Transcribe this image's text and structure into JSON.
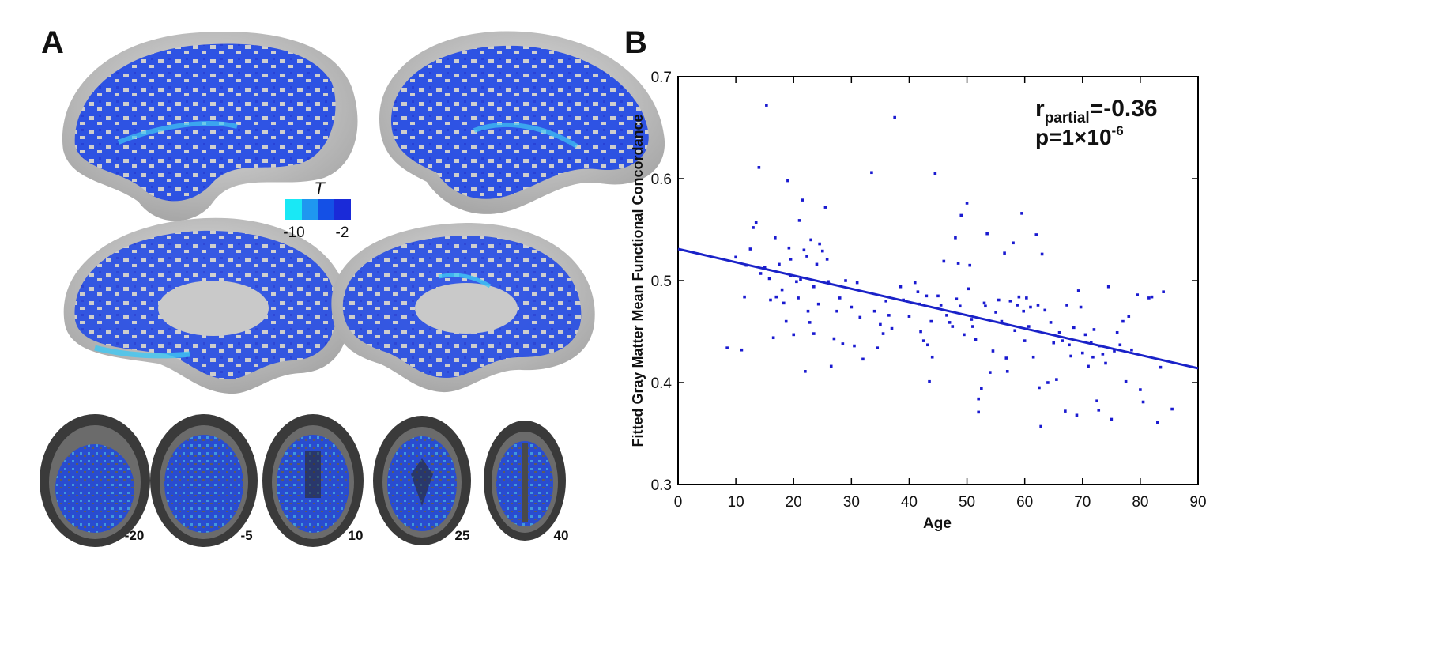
{
  "panels": {
    "a_label": "A",
    "b_label": "B"
  },
  "colorbar": {
    "title": "T",
    "min_label": "-10",
    "max_label": "-2",
    "colors": [
      "#19e8f5",
      "#1f97f0",
      "#1450e6",
      "#1a2ad8"
    ]
  },
  "slices": [
    {
      "label": "-20"
    },
    {
      "label": "-5"
    },
    {
      "label": "10"
    },
    {
      "label": "25"
    },
    {
      "label": "40"
    }
  ],
  "brain_colors": {
    "cortex": "#cfcfcf",
    "activation": "#1f4ae8",
    "strong": "#3fd0f5"
  },
  "chart_data": {
    "type": "scatter",
    "title": "",
    "xlabel": "Age",
    "ylabel": "Fitted Gray Matter Mean Functional Concordance",
    "xlim": [
      0,
      90
    ],
    "ylim": [
      0.3,
      0.7
    ],
    "xticks": [
      "0",
      "10",
      "20",
      "30",
      "40",
      "50",
      "60",
      "70",
      "80",
      "90"
    ],
    "yticks": [
      "0.3",
      "0.4",
      "0.5",
      "0.6",
      "0.7"
    ],
    "point_color": "#1a1ad0",
    "line_color": "#1a22c8",
    "fit_line": {
      "x": [
        0,
        90
      ],
      "y": [
        0.531,
        0.414
      ]
    },
    "annotation": {
      "r_main": "r",
      "r_sub": "partial",
      "r_value": "=-0.36",
      "p_main": "p=1×10",
      "p_exp": "-6"
    },
    "points": [
      [
        8.5,
        0.434
      ],
      [
        10.0,
        0.523
      ],
      [
        11.0,
        0.432
      ],
      [
        11.5,
        0.484
      ],
      [
        11.8,
        0.515
      ],
      [
        12.5,
        0.531
      ],
      [
        13.0,
        0.552
      ],
      [
        13.5,
        0.557
      ],
      [
        14.0,
        0.611
      ],
      [
        14.3,
        0.507
      ],
      [
        15.0,
        0.513
      ],
      [
        15.3,
        0.672
      ],
      [
        15.8,
        0.502
      ],
      [
        16.0,
        0.481
      ],
      [
        16.5,
        0.444
      ],
      [
        16.8,
        0.542
      ],
      [
        17.0,
        0.484
      ],
      [
        17.5,
        0.516
      ],
      [
        18.0,
        0.491
      ],
      [
        18.3,
        0.478
      ],
      [
        18.7,
        0.46
      ],
      [
        19.0,
        0.598
      ],
      [
        19.2,
        0.532
      ],
      [
        19.5,
        0.521
      ],
      [
        19.5,
        0.505
      ],
      [
        20.0,
        0.447
      ],
      [
        20.5,
        0.499
      ],
      [
        20.8,
        0.483
      ],
      [
        21.0,
        0.559
      ],
      [
        21.2,
        0.501
      ],
      [
        21.5,
        0.579
      ],
      [
        21.8,
        0.53
      ],
      [
        22.0,
        0.411
      ],
      [
        22.3,
        0.524
      ],
      [
        22.5,
        0.47
      ],
      [
        22.8,
        0.459
      ],
      [
        23.0,
        0.54
      ],
      [
        23.5,
        0.448
      ],
      [
        23.5,
        0.494
      ],
      [
        24.0,
        0.516
      ],
      [
        24.3,
        0.477
      ],
      [
        24.5,
        0.536
      ],
      [
        25.0,
        0.529
      ],
      [
        25.5,
        0.572
      ],
      [
        25.8,
        0.521
      ],
      [
        26.0,
        0.499
      ],
      [
        26.5,
        0.416
      ],
      [
        27.0,
        0.443
      ],
      [
        27.5,
        0.47
      ],
      [
        28.0,
        0.483
      ],
      [
        28.5,
        0.438
      ],
      [
        29.0,
        0.5
      ],
      [
        30.0,
        0.474
      ],
      [
        30.5,
        0.436
      ],
      [
        31.0,
        0.498
      ],
      [
        31.5,
        0.464
      ],
      [
        32.0,
        0.423
      ],
      [
        33.5,
        0.606
      ],
      [
        34.0,
        0.47
      ],
      [
        34.5,
        0.434
      ],
      [
        35.0,
        0.457
      ],
      [
        35.5,
        0.448
      ],
      [
        36.0,
        0.48
      ],
      [
        36.5,
        0.466
      ],
      [
        37.0,
        0.453
      ],
      [
        37.5,
        0.66
      ],
      [
        38.5,
        0.494
      ],
      [
        39.0,
        0.481
      ],
      [
        40.0,
        0.465
      ],
      [
        41.0,
        0.498
      ],
      [
        41.5,
        0.489
      ],
      [
        41.8,
        0.477
      ],
      [
        42.0,
        0.45
      ],
      [
        42.5,
        0.441
      ],
      [
        43.0,
        0.485
      ],
      [
        43.2,
        0.437
      ],
      [
        43.5,
        0.401
      ],
      [
        43.8,
        0.46
      ],
      [
        44.0,
        0.425
      ],
      [
        44.5,
        0.605
      ],
      [
        45.0,
        0.485
      ],
      [
        45.5,
        0.476
      ],
      [
        46.0,
        0.519
      ],
      [
        46.5,
        0.466
      ],
      [
        47.0,
        0.459
      ],
      [
        47.5,
        0.455
      ],
      [
        48.0,
        0.542
      ],
      [
        48.2,
        0.482
      ],
      [
        48.5,
        0.517
      ],
      [
        48.8,
        0.475
      ],
      [
        49.0,
        0.564
      ],
      [
        49.5,
        0.447
      ],
      [
        50.0,
        0.576
      ],
      [
        50.3,
        0.492
      ],
      [
        50.5,
        0.515
      ],
      [
        50.8,
        0.462
      ],
      [
        51.0,
        0.455
      ],
      [
        51.5,
        0.442
      ],
      [
        52.0,
        0.384
      ],
      [
        52.0,
        0.371
      ],
      [
        52.5,
        0.394
      ],
      [
        53.0,
        0.478
      ],
      [
        53.2,
        0.475
      ],
      [
        53.5,
        0.546
      ],
      [
        54.0,
        0.41
      ],
      [
        54.5,
        0.431
      ],
      [
        55.0,
        0.469
      ],
      [
        55.5,
        0.481
      ],
      [
        56.0,
        0.46
      ],
      [
        56.5,
        0.527
      ],
      [
        56.8,
        0.424
      ],
      [
        57.0,
        0.411
      ],
      [
        57.5,
        0.48
      ],
      [
        58.0,
        0.537
      ],
      [
        58.3,
        0.451
      ],
      [
        58.7,
        0.476
      ],
      [
        59.0,
        0.484
      ],
      [
        59.5,
        0.566
      ],
      [
        59.8,
        0.47
      ],
      [
        60.0,
        0.441
      ],
      [
        60.3,
        0.483
      ],
      [
        60.7,
        0.455
      ],
      [
        61.0,
        0.474
      ],
      [
        61.5,
        0.425
      ],
      [
        62.0,
        0.545
      ],
      [
        62.3,
        0.476
      ],
      [
        62.5,
        0.395
      ],
      [
        62.8,
        0.357
      ],
      [
        63.0,
        0.526
      ],
      [
        63.5,
        0.471
      ],
      [
        64.0,
        0.4
      ],
      [
        64.5,
        0.459
      ],
      [
        65.0,
        0.439
      ],
      [
        65.5,
        0.403
      ],
      [
        66.0,
        0.449
      ],
      [
        66.5,
        0.441
      ],
      [
        67.0,
        0.372
      ],
      [
        67.3,
        0.476
      ],
      [
        67.7,
        0.437
      ],
      [
        68.0,
        0.426
      ],
      [
        68.5,
        0.454
      ],
      [
        69.0,
        0.368
      ],
      [
        69.3,
        0.49
      ],
      [
        69.7,
        0.474
      ],
      [
        70.0,
        0.429
      ],
      [
        70.5,
        0.447
      ],
      [
        71.0,
        0.416
      ],
      [
        71.5,
        0.439
      ],
      [
        71.8,
        0.425
      ],
      [
        72.0,
        0.452
      ],
      [
        72.5,
        0.382
      ],
      [
        72.8,
        0.373
      ],
      [
        73.0,
        0.436
      ],
      [
        73.5,
        0.428
      ],
      [
        74.0,
        0.419
      ],
      [
        74.5,
        0.494
      ],
      [
        75.0,
        0.364
      ],
      [
        75.5,
        0.431
      ],
      [
        76.0,
        0.449
      ],
      [
        76.5,
        0.437
      ],
      [
        77.0,
        0.46
      ],
      [
        77.5,
        0.401
      ],
      [
        78.0,
        0.465
      ],
      [
        78.5,
        0.432
      ],
      [
        79.5,
        0.486
      ],
      [
        80.0,
        0.393
      ],
      [
        80.5,
        0.381
      ],
      [
        81.5,
        0.483
      ],
      [
        82.0,
        0.484
      ],
      [
        83.0,
        0.361
      ],
      [
        83.5,
        0.415
      ],
      [
        84.0,
        0.489
      ],
      [
        85.5,
        0.374
      ]
    ]
  }
}
